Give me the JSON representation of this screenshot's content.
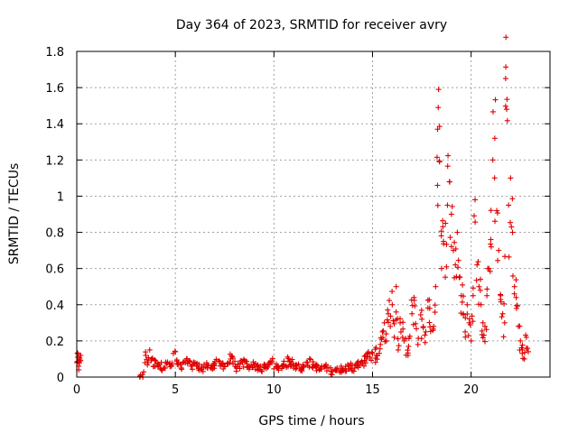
{
  "chart_data": {
    "type": "scatter",
    "title": "Day 364 of 2023, SRMTID for receiver avry",
    "xlabel": "GPS time / hours",
    "ylabel": "SRMTID / TECUs",
    "xlim": [
      0,
      24
    ],
    "ylim": [
      0,
      1.8
    ],
    "xticks": [
      0,
      5,
      10,
      15,
      20
    ],
    "yticks": [
      0,
      0.2,
      0.4,
      0.6,
      0.8,
      1,
      1.2,
      1.4,
      1.6,
      1.8
    ],
    "xtick_labels": [
      "0",
      "5",
      "10",
      "15",
      "20"
    ],
    "ytick_labels": [
      "0",
      "0.2",
      "0.4",
      "0.6",
      "0.8",
      "1",
      "1.2",
      "1.4",
      "1.6",
      "1.8"
    ],
    "grid": true,
    "marker": "+",
    "marker_color": "#e00000",
    "series": [
      {
        "name": "SRMTID",
        "x": [
          0.0,
          0.05,
          0.1,
          0.15,
          0.2,
          0.1,
          3.2,
          3.35,
          3.5,
          3.6,
          3.7,
          3.8,
          3.9,
          4.0,
          4.2,
          4.4,
          4.6,
          4.8,
          5.0,
          5.1,
          5.3,
          5.5,
          5.8,
          6.0,
          6.3,
          6.6,
          6.9,
          7.2,
          7.5,
          7.8,
          8.1,
          8.4,
          8.7,
          9.0,
          9.3,
          9.6,
          9.9,
          10.2,
          10.5,
          10.8,
          11.1,
          11.4,
          11.7,
          12.0,
          12.3,
          12.6,
          12.9,
          13.2,
          13.5,
          13.8,
          14.1,
          14.4,
          14.7,
          15.0,
          15.2,
          15.4,
          15.5,
          15.6,
          15.7,
          15.8,
          15.9,
          16.0,
          16.1,
          16.2,
          16.3,
          16.4,
          16.6,
          16.8,
          17.0,
          17.1,
          17.3,
          17.5,
          17.7,
          17.9,
          18.1,
          18.2,
          18.3,
          18.35,
          18.4,
          18.5,
          18.6,
          18.7,
          18.8,
          18.9,
          19.0,
          19.1,
          19.2,
          19.3,
          19.4,
          19.5,
          19.6,
          19.7,
          19.8,
          19.9,
          20.0,
          20.1,
          20.2,
          20.3,
          20.4,
          20.5,
          20.6,
          20.7,
          20.8,
          20.9,
          21.0,
          21.1,
          21.2,
          21.3,
          21.4,
          21.5,
          21.6,
          21.7,
          21.75,
          21.8,
          21.9,
          22.0,
          22.1,
          22.2,
          22.3,
          22.4,
          22.5,
          22.6,
          22.7,
          22.8,
          22.9
        ],
        "y": [
          0.08,
          0.11,
          0.06,
          0.1,
          0.12,
          0.04,
          0.0,
          0.0,
          0.12,
          0.08,
          0.15,
          0.1,
          0.06,
          0.09,
          0.07,
          0.05,
          0.08,
          0.06,
          0.14,
          0.07,
          0.05,
          0.09,
          0.06,
          0.08,
          0.04,
          0.07,
          0.05,
          0.09,
          0.06,
          0.1,
          0.05,
          0.08,
          0.06,
          0.07,
          0.04,
          0.06,
          0.08,
          0.05,
          0.07,
          0.09,
          0.06,
          0.05,
          0.08,
          0.07,
          0.04,
          0.06,
          0.03,
          0.05,
          0.04,
          0.06,
          0.05,
          0.08,
          0.1,
          0.13,
          0.12,
          0.18,
          0.25,
          0.3,
          0.2,
          0.35,
          0.28,
          0.4,
          0.22,
          0.5,
          0.15,
          0.3,
          0.2,
          0.12,
          0.35,
          0.44,
          0.18,
          0.32,
          0.25,
          0.38,
          0.28,
          0.5,
          1.37,
          1.59,
          1.19,
          0.6,
          0.75,
          0.85,
          0.95,
          1.08,
          0.9,
          0.7,
          0.62,
          0.8,
          0.55,
          0.45,
          0.35,
          0.25,
          0.4,
          0.3,
          0.2,
          0.45,
          0.98,
          0.62,
          0.5,
          0.4,
          0.3,
          0.28,
          0.45,
          0.6,
          0.76,
          1.2,
          1.32,
          0.92,
          0.7,
          0.45,
          0.35,
          0.3,
          1.65,
          1.48,
          0.95,
          1.1,
          0.8,
          0.5,
          0.38,
          0.28,
          0.2,
          0.15,
          0.1,
          0.22,
          0.14
        ]
      }
    ]
  }
}
